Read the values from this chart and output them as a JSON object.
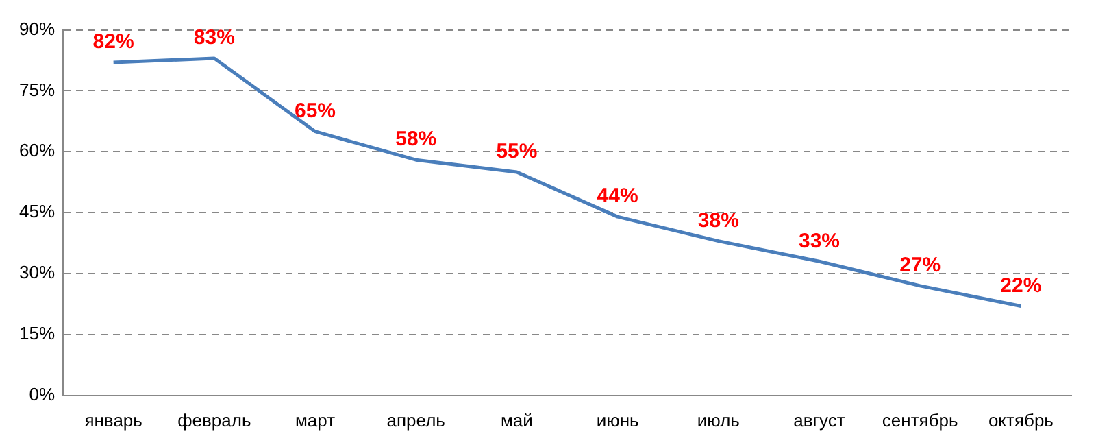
{
  "chart_data": {
    "type": "line",
    "categories": [
      "январь",
      "февраль",
      "март",
      "апрель",
      "май",
      "июнь",
      "июль",
      "август",
      "сентябрь",
      "октябрь"
    ],
    "series": [
      {
        "color": "#4a7ebb",
        "values": [
          82,
          83,
          65,
          58,
          55,
          44,
          38,
          33,
          27,
          22
        ],
        "value_labels": [
          "82%",
          "83%",
          "65%",
          "58%",
          "55%",
          "44%",
          "38%",
          "33%",
          "27%",
          "22%"
        ]
      }
    ],
    "ylim": [
      0,
      90
    ],
    "yticks": [
      {
        "value": 0,
        "label": "0%"
      },
      {
        "value": 15,
        "label": "15%"
      },
      {
        "value": 30,
        "label": "30%"
      },
      {
        "value": 45,
        "label": "45%"
      },
      {
        "value": 60,
        "label": "60%"
      },
      {
        "value": 75,
        "label": "75%"
      },
      {
        "value": 90,
        "label": "90%"
      }
    ],
    "grid": "y",
    "legend": false,
    "marker": "none",
    "line_style": "solid"
  }
}
